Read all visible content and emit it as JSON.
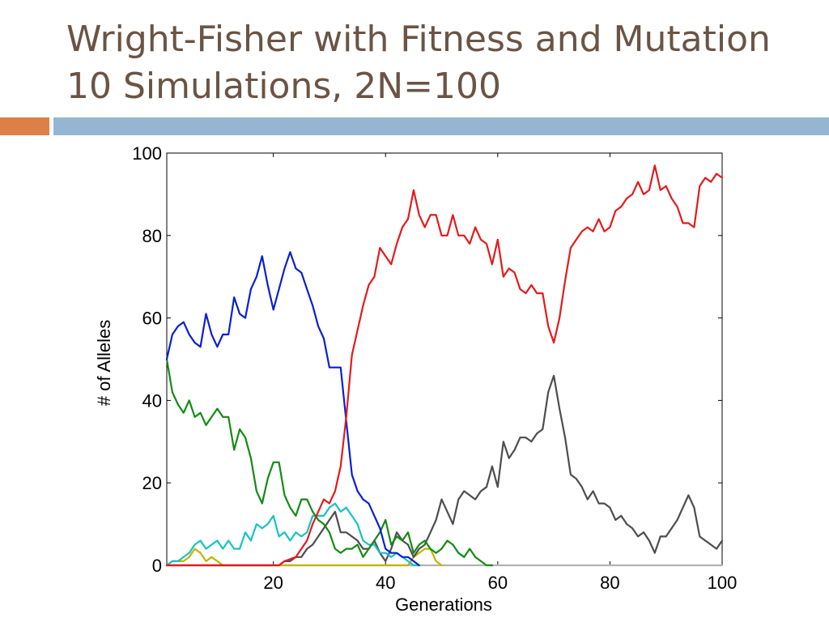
{
  "slide": {
    "title_line1": "Wright-Fisher with Fitness and Mutation",
    "title_line2": "10 Simulations, 2N=100",
    "accent_left_color": "#dd8047",
    "accent_right_color": "#94b6d2",
    "title_color": "#6b5444"
  },
  "chart_data": {
    "type": "line",
    "title": "",
    "xlabel": "Generations",
    "ylabel": "# of Alleles",
    "xlim": [
      1,
      100
    ],
    "ylim": [
      0,
      100
    ],
    "xticks": [
      20,
      40,
      60,
      80,
      100
    ],
    "yticks": [
      0,
      20,
      40,
      60,
      80,
      100
    ],
    "grid": false,
    "legend": "none",
    "series": [
      {
        "color": "#e31a1c",
        "x": [
          1,
          21,
          22,
          24,
          25,
          26,
          27,
          28,
          29,
          30,
          31,
          32,
          33,
          34,
          35,
          36,
          37,
          38,
          39,
          40,
          41,
          42,
          43,
          44,
          45,
          46,
          47,
          48,
          49,
          50,
          51,
          52,
          53,
          54,
          55,
          56,
          57,
          58,
          59,
          60,
          61,
          62,
          63,
          64,
          65,
          66,
          67,
          68,
          69,
          70,
          71,
          72,
          73,
          74,
          75,
          76,
          77,
          78,
          79,
          80,
          81,
          82,
          83,
          84,
          85,
          86,
          87,
          88,
          89,
          90,
          91,
          92,
          93,
          94,
          95,
          96,
          97,
          98,
          99,
          100
        ],
        "values": [
          0,
          0,
          1,
          2,
          4,
          6,
          10,
          13,
          16,
          15,
          18,
          24,
          36,
          51,
          57,
          63,
          68,
          70,
          77,
          75,
          73,
          78,
          82,
          84,
          91,
          85,
          82,
          85,
          85,
          80,
          80,
          85,
          80,
          80,
          78,
          82,
          79,
          78,
          73,
          79,
          70,
          72,
          71,
          67,
          66,
          68,
          66,
          66,
          58,
          54,
          60,
          69,
          77,
          79,
          81,
          82,
          81,
          84,
          81,
          82,
          86,
          87,
          89,
          90,
          93,
          90,
          91,
          97,
          91,
          92,
          89,
          87,
          83,
          83,
          82,
          92,
          94,
          93,
          95,
          94
        ]
      },
      {
        "color": "#0a1fd2",
        "x": [
          1,
          2,
          3,
          4,
          5,
          6,
          7,
          8,
          9,
          10,
          11,
          12,
          13,
          14,
          15,
          16,
          17,
          18,
          19,
          20,
          21,
          22,
          23,
          24,
          25,
          26,
          27,
          28,
          29,
          30,
          31,
          32,
          33,
          34,
          35,
          36,
          37,
          38,
          39,
          40,
          41,
          42,
          43,
          44,
          45,
          46
        ],
        "values": [
          50,
          56,
          58,
          59,
          56,
          54,
          53,
          61,
          56,
          53,
          56,
          56,
          65,
          61,
          60,
          67,
          70,
          75,
          68,
          62,
          67,
          72,
          76,
          72,
          71,
          67,
          63,
          58,
          55,
          48,
          48,
          48,
          35,
          22,
          18,
          16,
          15,
          12,
          9,
          4,
          3,
          3,
          2,
          2,
          1,
          0
        ]
      },
      {
        "color": "#138a13",
        "x": [
          1,
          2,
          3,
          4,
          5,
          6,
          7,
          8,
          9,
          10,
          11,
          12,
          13,
          14,
          15,
          16,
          17,
          18,
          19,
          20,
          21,
          22,
          23,
          24,
          25,
          26,
          27,
          28,
          29,
          30,
          31,
          32,
          33,
          34,
          35,
          36,
          37,
          38,
          39,
          40,
          41,
          42,
          43,
          44,
          45,
          46,
          47,
          48,
          49,
          50,
          51,
          52,
          53,
          54,
          55,
          56,
          57,
          58,
          59
        ],
        "values": [
          50,
          42,
          39,
          37,
          40,
          36,
          37,
          34,
          36,
          38,
          36,
          36,
          28,
          33,
          31,
          26,
          18,
          15,
          21,
          25,
          25,
          17,
          14,
          12,
          16,
          16,
          13,
          11,
          10,
          8,
          4,
          3,
          4,
          4,
          5,
          2,
          4,
          6,
          8,
          11,
          5,
          7,
          6,
          8,
          3,
          5,
          6,
          4,
          3,
          4,
          6,
          5,
          3,
          2,
          4,
          2,
          1,
          0,
          0
        ]
      },
      {
        "color": "#18c2c2",
        "x": [
          1,
          2,
          3,
          4,
          5,
          6,
          7,
          8,
          9,
          10,
          11,
          12,
          13,
          14,
          15,
          16,
          17,
          18,
          19,
          20,
          21,
          22,
          23,
          24,
          25,
          26,
          27,
          28,
          29,
          30,
          31,
          32,
          33,
          34,
          35,
          36,
          37,
          38,
          39,
          40,
          41,
          42,
          43,
          44,
          45,
          46
        ],
        "values": [
          0,
          1,
          1,
          2,
          3,
          5,
          6,
          4,
          5,
          6,
          4,
          6,
          4,
          4,
          8,
          6,
          10,
          9,
          10,
          12,
          7,
          8,
          6,
          8,
          7,
          8,
          12,
          12,
          12,
          14,
          15,
          13,
          14,
          12,
          10,
          6,
          5,
          5,
          3,
          3,
          2,
          3,
          2,
          1,
          0,
          0
        ]
      },
      {
        "color": "#4d4d4d",
        "x": [
          1,
          21,
          22,
          23,
          24,
          25,
          26,
          27,
          28,
          29,
          30,
          31,
          32,
          33,
          34,
          35,
          36,
          37,
          38,
          39,
          40,
          41,
          42,
          43,
          44,
          45,
          46,
          47,
          48,
          49,
          50,
          51,
          52,
          53,
          54,
          55,
          56,
          57,
          58,
          59,
          60,
          61,
          62,
          63,
          64,
          65,
          66,
          67,
          68,
          69,
          70,
          71,
          72,
          73,
          74,
          75,
          76,
          77,
          78,
          79,
          80,
          81,
          82,
          83,
          84,
          85,
          86,
          87,
          88,
          89,
          90,
          91,
          92,
          93,
          94,
          95,
          96,
          97,
          98,
          99,
          100
        ],
        "values": [
          0,
          0,
          1,
          1,
          2,
          2,
          4,
          5,
          7,
          9,
          11,
          13,
          8,
          8,
          7,
          6,
          4,
          4,
          6,
          3,
          1,
          4,
          8,
          6,
          5,
          2,
          4,
          5,
          8,
          11,
          16,
          13,
          10,
          16,
          18,
          17,
          16,
          18,
          19,
          24,
          19,
          30,
          26,
          28,
          31,
          31,
          30,
          32,
          33,
          42,
          46,
          38,
          31,
          22,
          21,
          19,
          16,
          18,
          15,
          15,
          14,
          11,
          12,
          10,
          9,
          7,
          8,
          6,
          3,
          7,
          7,
          9,
          11,
          14,
          17,
          14,
          7,
          6,
          5,
          4,
          6
        ]
      },
      {
        "color": "#c2b400",
        "x": [
          1,
          2,
          3,
          4,
          5,
          6,
          7,
          8,
          9,
          10,
          11,
          12,
          13,
          14,
          40,
          41,
          42,
          43,
          44,
          45,
          46,
          47,
          48,
          49,
          50
        ],
        "values": [
          0,
          1,
          1,
          1,
          2,
          4,
          3,
          1,
          2,
          1,
          0,
          0,
          0,
          0,
          0,
          0,
          0,
          0,
          0,
          2,
          3,
          4,
          4,
          1,
          0
        ]
      },
      {
        "color": "#b2b2b2",
        "x": [
          1,
          100
        ],
        "values": [
          0,
          0
        ]
      }
    ]
  }
}
